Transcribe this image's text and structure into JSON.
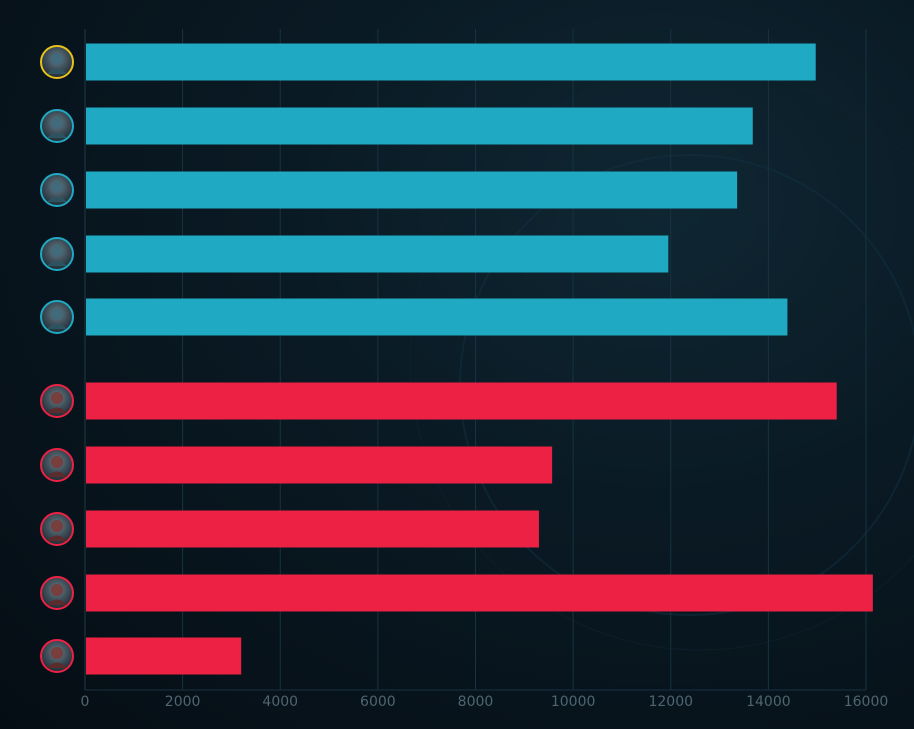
{
  "chart_data": {
    "type": "bar",
    "orientation": "horizontal",
    "title": "",
    "xlabel": "",
    "ylabel": "",
    "xlim": [
      0,
      16000
    ],
    "x_ticks": [
      "0",
      "2000",
      "4000",
      "6000",
      "8000",
      "10000",
      "12000",
      "14000",
      "16000"
    ],
    "grid": true,
    "legend": "none",
    "colors": {
      "blue_team": "#1fa9c2",
      "red_team": "#ed2144",
      "grid": "#173341",
      "tick_text": "#4f6570",
      "background": "#07121b"
    },
    "series": [
      {
        "team": "blue",
        "values": [
          14970,
          13680,
          13360,
          11950,
          14390
        ]
      },
      {
        "team": "red",
        "values": [
          15400,
          9570,
          9300,
          16140,
          3200
        ]
      }
    ],
    "rows": [
      {
        "team": "blue",
        "value": 14970,
        "icon": "champion-portrait-1-icon",
        "selected": true
      },
      {
        "team": "blue",
        "value": 13680,
        "icon": "champion-portrait-2-icon"
      },
      {
        "team": "blue",
        "value": 13360,
        "icon": "champion-portrait-3-icon"
      },
      {
        "team": "blue",
        "value": 11950,
        "icon": "champion-portrait-4-icon"
      },
      {
        "team": "blue",
        "value": 14390,
        "icon": "champion-portrait-5-icon"
      },
      {
        "team": "red",
        "value": 15400,
        "icon": "champion-portrait-6-icon"
      },
      {
        "team": "red",
        "value": 9570,
        "icon": "champion-portrait-7-icon"
      },
      {
        "team": "red",
        "value": 9300,
        "icon": "champion-portrait-8-icon"
      },
      {
        "team": "red",
        "value": 16140,
        "icon": "champion-portrait-9-icon"
      },
      {
        "team": "red",
        "value": 3200,
        "icon": "champion-portrait-10-icon"
      }
    ]
  }
}
